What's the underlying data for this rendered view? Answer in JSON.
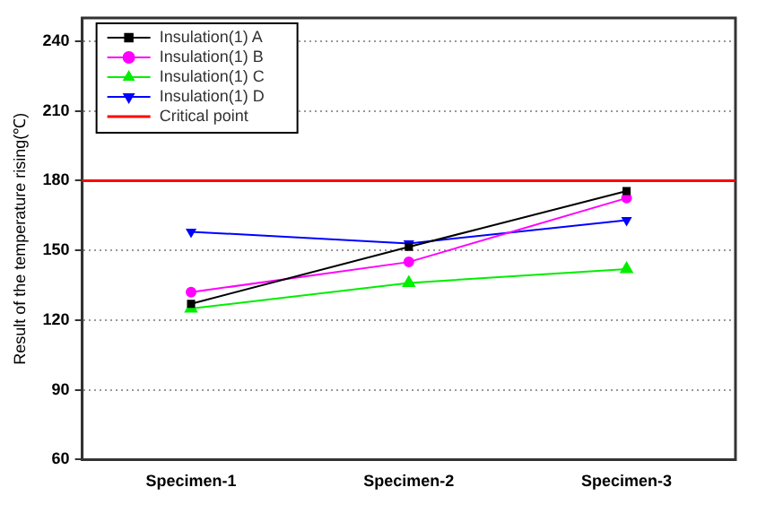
{
  "chart_data": {
    "type": "line",
    "categories": [
      "Specimen-1",
      "Specimen-2",
      "Specimen-3"
    ],
    "ylabel": "Result of the temperature rising(℃)",
    "ylim": [
      60,
      250
    ],
    "yticks": [
      60,
      90,
      120,
      150,
      180,
      210,
      240
    ],
    "grid": "y",
    "legend": "top left",
    "series": [
      {
        "name": "Insulation(1) A",
        "color": "#000000",
        "marker": "square",
        "values": [
          127,
          151.5,
          175.5
        ]
      },
      {
        "name": "Insulation(1) B",
        "color": "#ff00ff",
        "marker": "circle",
        "values": [
          132,
          145,
          172.5
        ]
      },
      {
        "name": "Insulation(1) C",
        "color": "#00ee00",
        "marker": "triangle",
        "values": [
          125,
          136,
          142
        ]
      },
      {
        "name": "Insulation(1) D",
        "color": "#0000ff",
        "marker": "triangle-down",
        "values": [
          158,
          153,
          163
        ]
      }
    ],
    "ref_lines": [
      {
        "axis": "y",
        "value": 180,
        "label": "Critical point",
        "color": "#ff0000"
      }
    ]
  }
}
